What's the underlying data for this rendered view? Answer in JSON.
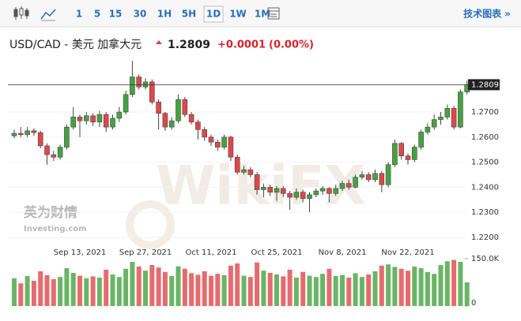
{
  "toolbar": {
    "intervals": [
      "1",
      "5",
      "15",
      "30",
      "1H",
      "5H",
      "1D",
      "1W",
      "1M"
    ],
    "active_interval": 6,
    "link": "技术图表 »"
  },
  "header": {
    "title": "USD/CAD - 美元 加拿大元",
    "price": "1.2809",
    "change": "+0.0001",
    "change_pct": "(0.00%)"
  },
  "watermark": {
    "brand": "英为财情",
    "site": "Investing.com",
    "mark": "WikiFX"
  },
  "chart_data": {
    "type": "candlestick",
    "categories": [
      null,
      null,
      null,
      null,
      null,
      null,
      null,
      null,
      null,
      null,
      "Sep 13, 2021",
      null,
      null,
      null,
      null,
      null,
      null,
      null,
      null,
      null,
      "Sep 27, 2021",
      null,
      null,
      null,
      null,
      null,
      null,
      null,
      null,
      null,
      "Oct 11, 2021",
      null,
      null,
      null,
      null,
      null,
      null,
      null,
      null,
      null,
      "Oct 25, 2021",
      null,
      null,
      null,
      null,
      null,
      null,
      null,
      null,
      null,
      "Nov 8, 2021",
      null,
      null,
      null,
      null,
      null,
      null,
      null,
      null,
      null,
      "Nov 22, 2021",
      null,
      null,
      null,
      null,
      null,
      null,
      null,
      null,
      null
    ],
    "open": [
      1.2605,
      1.2615,
      1.261,
      1.2625,
      1.2618,
      1.2565,
      1.253,
      1.252,
      1.256,
      1.264,
      1.268,
      1.2665,
      1.2685,
      1.266,
      1.269,
      1.264,
      1.2675,
      1.27,
      1.277,
      1.284,
      1.28,
      1.282,
      1.274,
      1.2695,
      1.264,
      1.2665,
      1.275,
      1.269,
      1.266,
      1.263,
      1.26,
      1.258,
      1.256,
      1.26,
      1.252,
      1.246,
      1.247,
      1.245,
      1.239,
      1.24,
      1.238,
      1.2395,
      1.2375,
      1.236,
      1.238,
      1.2355,
      1.237,
      1.2385,
      1.2395,
      1.2375,
      1.2395,
      1.2415,
      1.24,
      1.244,
      1.245,
      1.243,
      1.2455,
      1.241,
      1.249,
      1.2575,
      1.2525,
      1.251,
      1.256,
      1.262,
      1.264,
      1.267,
      1.268,
      1.2715,
      1.264,
      1.278
    ],
    "high": [
      1.263,
      1.264,
      1.264,
      1.2635,
      1.2625,
      1.2575,
      1.2545,
      1.257,
      1.265,
      1.272,
      1.269,
      1.27,
      1.2695,
      1.2705,
      1.27,
      1.269,
      1.272,
      1.2785,
      1.2905,
      1.285,
      1.2835,
      1.283,
      1.275,
      1.27,
      1.268,
      1.277,
      1.276,
      1.27,
      1.267,
      1.264,
      1.261,
      1.259,
      1.261,
      1.2605,
      1.253,
      1.2485,
      1.248,
      1.246,
      1.2415,
      1.241,
      1.2405,
      1.2405,
      1.2385,
      1.2395,
      1.239,
      1.238,
      1.2395,
      1.2405,
      1.24,
      1.241,
      1.2425,
      1.243,
      1.245,
      1.2465,
      1.246,
      1.247,
      1.2465,
      1.25,
      1.259,
      1.258,
      1.2535,
      1.257,
      1.263,
      1.2655,
      1.269,
      1.27,
      1.273,
      1.2725,
      1.279,
      1.2825
    ],
    "low": [
      1.2595,
      1.26,
      1.26,
      1.2605,
      1.2555,
      1.249,
      1.2505,
      1.251,
      1.255,
      1.263,
      1.26,
      1.265,
      1.2645,
      1.264,
      1.262,
      1.263,
      1.266,
      1.269,
      1.276,
      1.279,
      1.279,
      1.273,
      1.263,
      1.2625,
      1.263,
      1.2655,
      1.268,
      1.265,
      1.259,
      1.2585,
      1.2565,
      1.2545,
      1.255,
      1.2505,
      1.245,
      1.245,
      1.244,
      1.237,
      1.236,
      1.2365,
      1.2345,
      1.236,
      1.231,
      1.235,
      1.234,
      1.23,
      1.236,
      1.237,
      1.234,
      1.2365,
      1.2385,
      1.239,
      1.2395,
      1.243,
      1.242,
      1.242,
      1.238,
      1.24,
      1.248,
      1.251,
      1.249,
      1.25,
      1.255,
      1.261,
      1.263,
      1.265,
      1.267,
      1.263,
      1.2635,
      1.277
    ],
    "close": [
      1.2615,
      1.261,
      1.2625,
      1.2618,
      1.2565,
      1.253,
      1.252,
      1.256,
      1.264,
      1.268,
      1.2665,
      1.2685,
      1.266,
      1.269,
      1.264,
      1.2675,
      1.27,
      1.277,
      1.284,
      1.28,
      1.282,
      1.274,
      1.2695,
      1.264,
      1.2665,
      1.275,
      1.269,
      1.266,
      1.263,
      1.26,
      1.258,
      1.256,
      1.26,
      1.252,
      1.246,
      1.247,
      1.245,
      1.239,
      1.24,
      1.238,
      1.2395,
      1.2375,
      1.236,
      1.238,
      1.2355,
      1.237,
      1.2385,
      1.2395,
      1.2375,
      1.2395,
      1.2415,
      1.24,
      1.244,
      1.245,
      1.243,
      1.2455,
      1.241,
      1.249,
      1.2575,
      1.2525,
      1.251,
      1.256,
      1.262,
      1.264,
      1.267,
      1.268,
      1.2715,
      1.264,
      1.278,
      1.2809
    ],
    "up_color": "#45a33f",
    "down_color": "#e0464b",
    "ylim": [
      1.214,
      1.2911
    ],
    "yticks": [
      {
        "value": 1.22,
        "label": "1.2200"
      },
      {
        "value": 1.23,
        "label": "1.2300"
      },
      {
        "value": 1.24,
        "label": "1.2400"
      },
      {
        "value": 1.25,
        "label": "1.2500"
      },
      {
        "value": 1.26,
        "label": "1.2600"
      },
      {
        "value": 1.27,
        "label": "1.2700"
      }
    ],
    "volume": {
      "values": [
        88000,
        72000,
        95000,
        80000,
        110000,
        98000,
        85000,
        92000,
        120000,
        105000,
        96000,
        88000,
        94000,
        90000,
        115000,
        100000,
        92000,
        118000,
        140000,
        125000,
        112000,
        130000,
        122000,
        108000,
        95000,
        126000,
        118000,
        104000,
        99000,
        110000,
        96000,
        102000,
        98000,
        128000,
        135000,
        96000,
        92000,
        138000,
        112000,
        105000,
        100000,
        94000,
        115000,
        90000,
        108000,
        96000,
        92000,
        102000,
        118000,
        95000,
        98000,
        90000,
        104000,
        92000,
        100000,
        110000,
        128000,
        132000,
        124000,
        118000,
        112000,
        125000,
        120000,
        108000,
        102000,
        130000,
        142000,
        146000,
        140000,
        75000
      ],
      "ylim": [
        0,
        175000
      ],
      "yticks": [
        {
          "value": 150000,
          "label": "150.0K"
        },
        0
      ]
    }
  }
}
